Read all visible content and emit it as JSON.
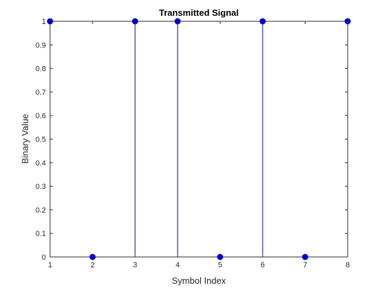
{
  "chart_data": {
    "type": "stem",
    "title": "Transmitted Signal",
    "xlabel": "Symbol Index",
    "ylabel": "Binary Value",
    "x": [
      1,
      2,
      3,
      4,
      5,
      6,
      7,
      8
    ],
    "values": [
      1,
      0,
      1,
      1,
      0,
      1,
      0,
      1
    ],
    "xlim": [
      1,
      8
    ],
    "ylim": [
      0,
      1
    ],
    "xticks": [
      "1",
      "2",
      "3",
      "4",
      "5",
      "6",
      "7",
      "8"
    ],
    "yticks": [
      "0",
      "0.1",
      "0.2",
      "0.3",
      "0.4",
      "0.5",
      "0.6",
      "0.7",
      "0.8",
      "0.9",
      "1"
    ],
    "grid": false,
    "colors": {
      "stem": "#000080",
      "marker": "#0000cd",
      "axis": "#262626"
    }
  }
}
